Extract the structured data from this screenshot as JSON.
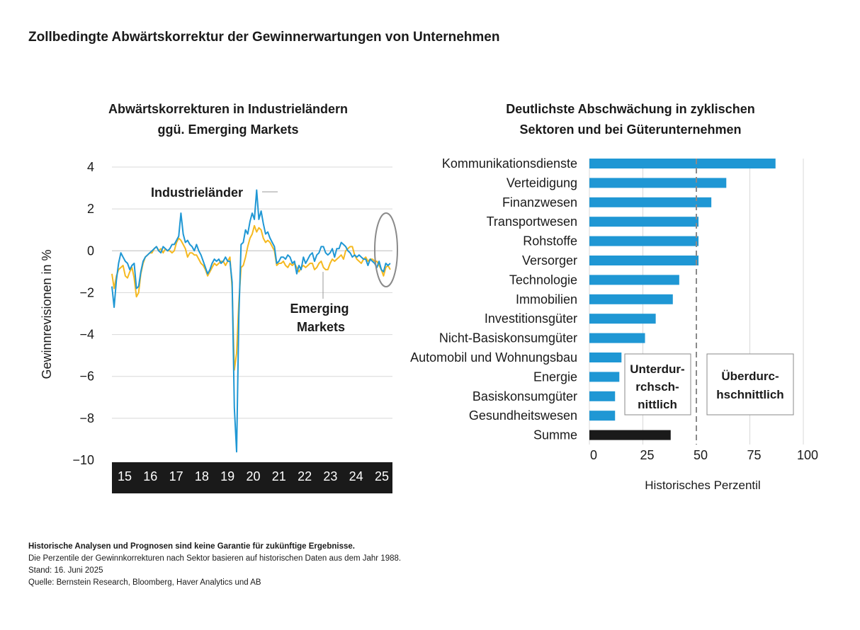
{
  "title": "Zollbedingte Abwärtskorrektur der Gewinnerwartungen von Unternehmen",
  "left_title_line1": "Abwärtskorrekturen in Industrieländern",
  "left_title_line2": "ggü. Emerging Markets",
  "right_title_line1": "Deutlichste Abschwächung in zyklischen",
  "right_title_line2": "Sektoren und bei Güterunternehmen",
  "annotations": {
    "industrial": "Industrieländer",
    "emerging_line1": "Emerging",
    "emerging_line2": "Markets",
    "below_line1": "Unterdur-",
    "below_line2": "rchsch-",
    "below_line3": "nittlich",
    "above_line1": "Überdurc-",
    "above_line2": "hschnittlich"
  },
  "footnotes": {
    "line1": "Historische Analysen und Prognosen sind keine Garantie für zukünftige Ergebnisse.",
    "line2": "Die Perzentile der Gewinnkorrekturen nach Sektor basieren auf historischen Daten aus dem Jahr 1988.",
    "line3": "Stand: 16. Juni 2025",
    "line4": "Quelle: Bernstein Research, Bloomberg, Haver Analytics und AB"
  },
  "colors": {
    "blue": "#1f97d4",
    "yellow": "#f5b920",
    "black": "#1a1a1a",
    "grid": "#d0d0d0",
    "ellipse": "#8a8a8a"
  },
  "chart_data": [
    {
      "type": "line",
      "title": "Abwärtskorrekturen in Industrieländern ggü. Emerging Markets",
      "ylabel": "Gewinnrevisionen in %",
      "xlabel": "",
      "ylim": [
        -10,
        4
      ],
      "yticks": [
        4,
        2,
        0,
        -2,
        -4,
        -6,
        -8,
        -10
      ],
      "ytick_labels": [
        "4",
        "2",
        "0",
        "−2",
        "−4",
        "−6",
        "−8",
        "−10"
      ],
      "x_range": [
        2015.0,
        2025.5
      ],
      "xtick_labels": [
        "15",
        "16",
        "17",
        "18",
        "19",
        "20",
        "21",
        "22",
        "23",
        "24",
        "25"
      ],
      "series": [
        {
          "name": "Industrieländer",
          "color": "#1f97d4",
          "x": [
            2015.0,
            2015.083,
            2015.167,
            2015.25,
            2015.333,
            2015.417,
            2015.5,
            2015.583,
            2015.667,
            2015.75,
            2015.833,
            2015.917,
            2016.0,
            2016.083,
            2016.167,
            2016.25,
            2016.333,
            2016.417,
            2016.5,
            2016.583,
            2016.667,
            2016.75,
            2016.833,
            2016.917,
            2017.0,
            2017.083,
            2017.167,
            2017.25,
            2017.333,
            2017.417,
            2017.5,
            2017.583,
            2017.667,
            2017.75,
            2017.833,
            2017.917,
            2018.0,
            2018.083,
            2018.167,
            2018.25,
            2018.333,
            2018.417,
            2018.5,
            2018.583,
            2018.667,
            2018.75,
            2018.833,
            2018.917,
            2019.0,
            2019.083,
            2019.167,
            2019.25,
            2019.333,
            2019.417,
            2019.5,
            2019.583,
            2019.667,
            2019.75,
            2019.833,
            2019.917,
            2020.0,
            2020.083,
            2020.167,
            2020.25,
            2020.333,
            2020.417,
            2020.5,
            2020.583,
            2020.667,
            2020.75,
            2020.833,
            2020.917,
            2021.0,
            2021.083,
            2021.167,
            2021.25,
            2021.333,
            2021.417,
            2021.5,
            2021.583,
            2021.667,
            2021.75,
            2021.833,
            2021.917,
            2022.0,
            2022.083,
            2022.167,
            2022.25,
            2022.333,
            2022.417,
            2022.5,
            2022.583,
            2022.667,
            2022.75,
            2022.833,
            2022.917,
            2023.0,
            2023.083,
            2023.167,
            2023.25,
            2023.333,
            2023.417,
            2023.5,
            2023.583,
            2023.667,
            2023.75,
            2023.833,
            2023.917,
            2024.0,
            2024.083,
            2024.167,
            2024.25,
            2024.333,
            2024.417,
            2024.5,
            2024.583,
            2024.667,
            2024.75,
            2024.833,
            2024.917,
            2025.0,
            2025.083,
            2025.167,
            2025.25,
            2025.333,
            2025.417
          ],
          "values": [
            -1.7,
            -2.7,
            -1.4,
            -0.6,
            -0.1,
            -0.3,
            -0.5,
            -0.6,
            -0.9,
            -0.7,
            -0.6,
            -1.8,
            -1.7,
            -1.0,
            -0.5,
            -0.3,
            -0.2,
            -0.1,
            0.0,
            0.1,
            0.2,
            0.0,
            -0.1,
            0.2,
            0.1,
            0.0,
            0.1,
            0.3,
            0.3,
            0.5,
            0.7,
            1.8,
            0.8,
            0.4,
            0.5,
            0.3,
            0.2,
            0.0,
            0.3,
            0.0,
            -0.2,
            -0.5,
            -0.8,
            -1.1,
            -0.9,
            -0.6,
            -0.4,
            -0.5,
            -0.4,
            -0.6,
            -0.5,
            -0.3,
            -0.5,
            -0.5,
            -1.5,
            -7.5,
            -9.6,
            -3.2,
            0.3,
            0.4,
            1.0,
            0.8,
            1.4,
            1.8,
            1.5,
            2.9,
            1.5,
            1.9,
            1.3,
            0.8,
            0.9,
            0.6,
            0.4,
            0.2,
            -0.6,
            -0.5,
            -0.3,
            -0.3,
            -0.4,
            -0.2,
            -0.3,
            -0.6,
            -0.5,
            -1.1,
            -0.7,
            -0.9,
            -0.3,
            -0.6,
            -0.4,
            -0.2,
            -0.1,
            -0.5,
            -0.2,
            -0.1,
            0.2,
            0.2,
            -0.1,
            -0.2,
            -0.1,
            0.1,
            -0.3,
            0.1,
            0.1,
            0.4,
            0.3,
            0.2,
            0.0,
            -0.1,
            -0.3,
            -0.2,
            -0.3,
            -0.2,
            -0.3,
            -0.4,
            -0.4,
            -0.7,
            -0.4,
            -0.5,
            -0.6,
            -0.8,
            -0.5,
            -0.9,
            -1.0,
            -0.6,
            -0.7,
            -0.6
          ]
        },
        {
          "name": "Emerging Markets",
          "color": "#f5b920",
          "x": [
            2015.0,
            2015.083,
            2015.167,
            2015.25,
            2015.333,
            2015.417,
            2015.5,
            2015.583,
            2015.667,
            2015.75,
            2015.833,
            2015.917,
            2016.0,
            2016.083,
            2016.167,
            2016.25,
            2016.333,
            2016.417,
            2016.5,
            2016.583,
            2016.667,
            2016.75,
            2016.833,
            2016.917,
            2017.0,
            2017.083,
            2017.167,
            2017.25,
            2017.333,
            2017.417,
            2017.5,
            2017.583,
            2017.667,
            2017.75,
            2017.833,
            2017.917,
            2018.0,
            2018.083,
            2018.167,
            2018.25,
            2018.333,
            2018.417,
            2018.5,
            2018.583,
            2018.667,
            2018.75,
            2018.833,
            2018.917,
            2019.0,
            2019.083,
            2019.167,
            2019.25,
            2019.333,
            2019.417,
            2019.5,
            2019.583,
            2019.667,
            2019.75,
            2019.833,
            2019.917,
            2020.0,
            2020.083,
            2020.167,
            2020.25,
            2020.333,
            2020.417,
            2020.5,
            2020.583,
            2020.667,
            2020.75,
            2020.833,
            2020.917,
            2021.0,
            2021.083,
            2021.167,
            2021.25,
            2021.333,
            2021.417,
            2021.5,
            2021.583,
            2021.667,
            2021.75,
            2021.833,
            2021.917,
            2022.0,
            2022.083,
            2022.167,
            2022.25,
            2022.333,
            2022.417,
            2022.5,
            2022.583,
            2022.667,
            2022.75,
            2022.833,
            2022.917,
            2023.0,
            2023.083,
            2023.167,
            2023.25,
            2023.333,
            2023.417,
            2023.5,
            2023.583,
            2023.667,
            2023.75,
            2023.833,
            2023.917,
            2024.0,
            2024.083,
            2024.167,
            2024.25,
            2024.333,
            2024.417,
            2024.5,
            2024.583,
            2024.667,
            2024.75,
            2024.833,
            2024.917,
            2025.0,
            2025.083,
            2025.167,
            2025.25,
            2025.333,
            2025.417
          ],
          "values": [
            -1.1,
            -1.8,
            -1.2,
            -0.9,
            -0.8,
            -0.7,
            -1.2,
            -1.3,
            -1.0,
            -0.8,
            -1.3,
            -2.2,
            -2.0,
            -1.1,
            -0.6,
            -0.3,
            -0.2,
            -0.1,
            -0.1,
            0.1,
            0.2,
            0.0,
            0.1,
            -0.1,
            0.1,
            0.0,
            0.0,
            -0.1,
            0.0,
            0.4,
            0.6,
            0.5,
            0.3,
            0.1,
            -0.3,
            -0.1,
            -0.1,
            -0.2,
            -0.2,
            -0.4,
            -0.6,
            -0.7,
            -0.9,
            -1.2,
            -1.0,
            -0.8,
            -0.6,
            -0.7,
            -0.6,
            -0.5,
            -0.5,
            -0.7,
            -0.5,
            -0.3,
            -1.8,
            -5.7,
            -4.9,
            -2.5,
            -0.8,
            -0.7,
            -0.3,
            0.2,
            0.6,
            0.8,
            1.2,
            0.9,
            1.1,
            1.0,
            0.6,
            0.4,
            0.5,
            0.4,
            0.2,
            0.0,
            -0.7,
            -0.6,
            -0.6,
            -0.5,
            -0.7,
            -0.8,
            -0.6,
            -0.7,
            -0.6,
            -0.8,
            -1.0,
            -0.8,
            -0.7,
            -0.8,
            -0.7,
            -0.6,
            -0.6,
            -0.9,
            -0.8,
            -0.6,
            -0.5,
            -0.8,
            -0.9,
            -0.9,
            -0.6,
            -0.4,
            -0.5,
            -0.4,
            -0.3,
            -0.2,
            -0.4,
            0.0,
            0.1,
            0.2,
            0.2,
            -0.2,
            -0.4,
            -0.5,
            -0.6,
            -0.4,
            -0.3,
            -0.5,
            -0.4,
            -0.4,
            -0.5,
            -0.5,
            -0.7,
            -0.9,
            -1.2,
            -0.8,
            -0.7,
            -0.9
          ]
        }
      ]
    },
    {
      "type": "bar",
      "orientation": "horizontal",
      "title": "Deutlichste Abschwächung in zyklischen Sektoren und bei Güterunternehmen",
      "xlabel": "Historisches Perzentil",
      "xlim": [
        0,
        100
      ],
      "xticks": [
        0,
        25,
        50,
        75,
        100
      ],
      "reference_line": 50,
      "categories": [
        "Kommunikationsdienste",
        "Verteidigung",
        "Finanzwesen",
        "Transportwesen",
        "Rohstoffe",
        "Versorger",
        "Technologie",
        "Immobilien",
        "Investitionsgüter",
        "Nicht-Basiskonsumgüter",
        "Automobil und Wohnungsbau",
        "Energie",
        "Basiskonsumgüter",
        "Gesundheitswesen",
        "Summe"
      ],
      "values": [
        87,
        64,
        57,
        51,
        51,
        51,
        42,
        39,
        31,
        26,
        15,
        14,
        12,
        12,
        38
      ],
      "bar_colors": [
        "#1f97d4",
        "#1f97d4",
        "#1f97d4",
        "#1f97d4",
        "#1f97d4",
        "#1f97d4",
        "#1f97d4",
        "#1f97d4",
        "#1f97d4",
        "#1f97d4",
        "#1f97d4",
        "#1f97d4",
        "#1f97d4",
        "#1f97d4",
        "#1a1a1a"
      ]
    }
  ]
}
